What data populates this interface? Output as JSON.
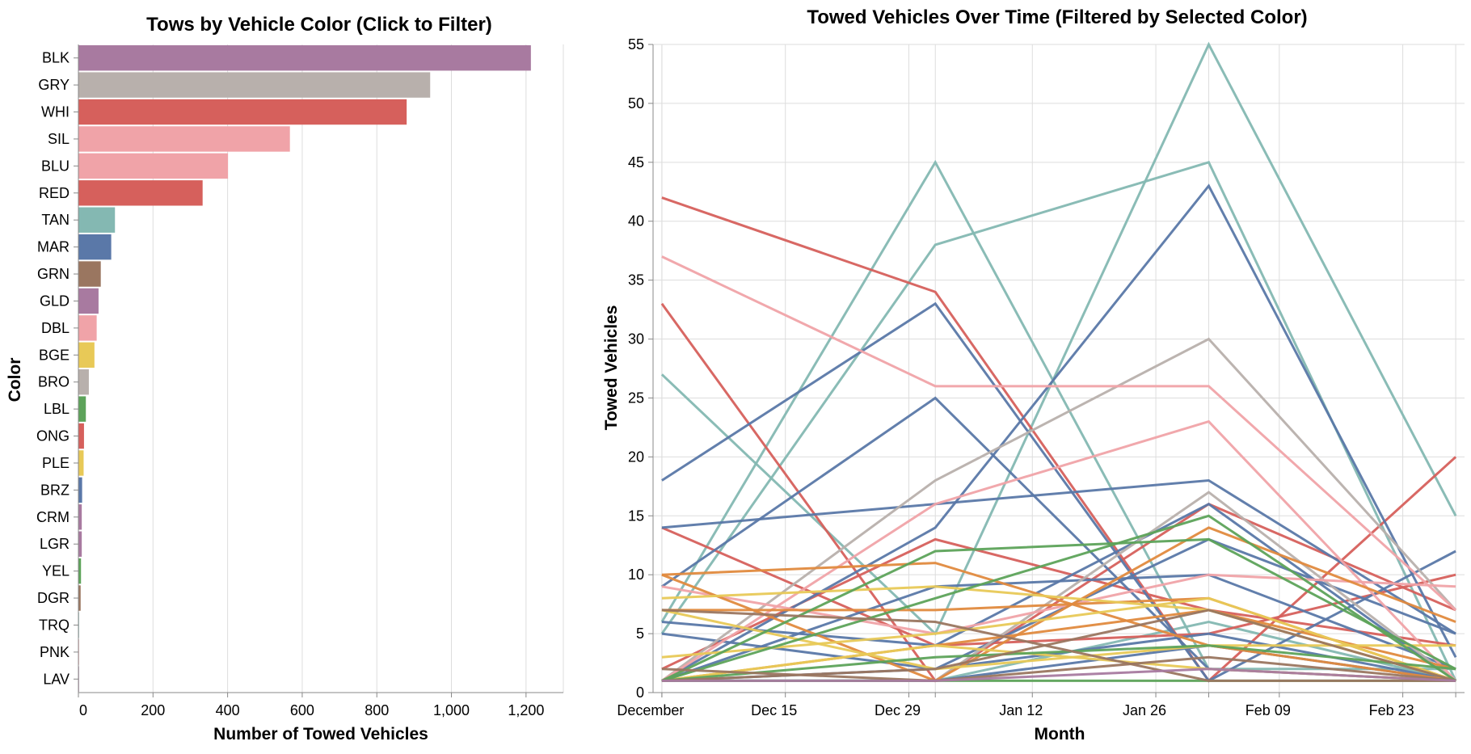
{
  "chart_data": [
    {
      "type": "bar",
      "orientation": "horizontal",
      "title": "Tows by Vehicle Color (Click to Filter)",
      "xlabel": "Number of Towed Vehicles",
      "ylabel": "Color",
      "xlim": [
        0,
        1300
      ],
      "x_ticks": [
        "0",
        "200",
        "400",
        "600",
        "800",
        "1,000",
        "1,200"
      ],
      "x_tick_values": [
        0,
        200,
        400,
        600,
        800,
        1000,
        1200
      ],
      "grid": true,
      "categories": [
        "BLK",
        "GRY",
        "WHI",
        "SIL",
        "BLU",
        "RED",
        "TAN",
        "MAR",
        "GRN",
        "GLD",
        "DBL",
        "BGE",
        "BRO",
        "LBL",
        "ONG",
        "PLE",
        "BRZ",
        "CRM",
        "LGR",
        "YEL",
        "DGR",
        "TRQ",
        "PNK",
        "LAV"
      ],
      "values": [
        1213,
        943,
        880,
        567,
        401,
        333,
        98,
        88,
        60,
        54,
        49,
        43,
        28,
        20,
        15,
        14,
        10,
        9,
        9,
        7,
        6,
        1,
        1,
        1
      ],
      "colors": [
        "#a87aa0",
        "#b8b0ac",
        "#d6605c",
        "#f0a3a8",
        "#f0a3a8",
        "#d6605c",
        "#84b8b2",
        "#5a78a8",
        "#9a7660",
        "#a87aa0",
        "#f0a3a8",
        "#e8c957",
        "#b8b0ac",
        "#5da35a",
        "#d6605c",
        "#e8c957",
        "#5a78a8",
        "#a87aa0",
        "#a87aa0",
        "#5da35a",
        "#9a7660",
        "#84b8b2",
        "#f0a3a8",
        "#a87aa0"
      ]
    },
    {
      "type": "line",
      "title": "Towed Vehicles Over Time (Filtered by Selected Color)",
      "xlabel": "Month",
      "ylabel": "Towed Vehicles",
      "ylim": [
        0,
        55
      ],
      "y_ticks": [
        0,
        5,
        10,
        15,
        20,
        25,
        30,
        35,
        40,
        45,
        50,
        55
      ],
      "x_ticks": [
        "December",
        "Dec 15",
        "Dec 29",
        "Jan 12",
        "Jan 26",
        "Feb 09",
        "Feb 23"
      ],
      "x_tick_dates": [
        "2024-12-01",
        "2024-12-15",
        "2024-12-29",
        "2025-01-12",
        "2025-01-26",
        "2025-02-09",
        "2025-02-23"
      ],
      "x_domain": [
        "2024-11-30",
        "2025-03-02"
      ],
      "x_dates": [
        "2024-12-01",
        "2025-01-01",
        "2025-02-01",
        "2025-03-01"
      ],
      "grid": true,
      "series": [
        {
          "color": "#84b8b2",
          "values": [
            27,
            5,
            55,
            15
          ]
        },
        {
          "color": "#84b8b2",
          "values": [
            6,
            45,
            2,
            2
          ]
        },
        {
          "color": "#84b8b2",
          "values": [
            5,
            38,
            45,
            1
          ]
        },
        {
          "color": "#84b8b2",
          "values": [
            1,
            1,
            6,
            1
          ]
        },
        {
          "color": "#d6605c",
          "values": [
            33,
            1,
            16,
            7
          ]
        },
        {
          "color": "#d6605c",
          "values": [
            42,
            34,
            1,
            20
          ]
        },
        {
          "color": "#d6605c",
          "values": [
            14,
            4,
            5,
            10
          ]
        },
        {
          "color": "#d6605c",
          "values": [
            2,
            13,
            7,
            4
          ]
        },
        {
          "color": "#5a78a8",
          "values": [
            18,
            33,
            1,
            12
          ]
        },
        {
          "color": "#5a78a8",
          "values": [
            14,
            16,
            18,
            5
          ]
        },
        {
          "color": "#5a78a8",
          "values": [
            9,
            25,
            2,
            1
          ]
        },
        {
          "color": "#5a78a8",
          "values": [
            6,
            4,
            16,
            1
          ]
        },
        {
          "color": "#5a78a8",
          "values": [
            1,
            14,
            43,
            3
          ]
        },
        {
          "color": "#5a78a8",
          "values": [
            1,
            9,
            10,
            2
          ]
        },
        {
          "color": "#5a78a8",
          "values": [
            5,
            2,
            13,
            5
          ]
        },
        {
          "color": "#5a78a8",
          "values": [
            1,
            2,
            5,
            1
          ]
        },
        {
          "color": "#5a78a8",
          "values": [
            1,
            1,
            4,
            1
          ]
        },
        {
          "color": "#b8b0ac",
          "values": [
            1,
            18,
            30,
            7
          ]
        },
        {
          "color": "#b8b0ac",
          "values": [
            1,
            1,
            17,
            1
          ]
        },
        {
          "color": "#f0a3a8",
          "values": [
            37,
            26,
            26,
            7
          ]
        },
        {
          "color": "#f0a3a8",
          "values": [
            9,
            5,
            10,
            9
          ]
        },
        {
          "color": "#f0a3a8",
          "values": [
            1,
            16,
            23,
            1
          ]
        },
        {
          "color": "#e08a3e",
          "values": [
            10,
            1,
            14,
            6
          ]
        },
        {
          "color": "#e08a3e",
          "values": [
            10,
            11,
            4,
            1
          ]
        },
        {
          "color": "#e08a3e",
          "values": [
            7,
            7,
            8,
            1
          ]
        },
        {
          "color": "#e08a3e",
          "values": [
            1,
            4,
            7,
            2
          ]
        },
        {
          "color": "#e8c957",
          "values": [
            8,
            9,
            7,
            1
          ]
        },
        {
          "color": "#e8c957",
          "values": [
            3,
            5,
            8,
            1
          ]
        },
        {
          "color": "#e8c957",
          "values": [
            7,
            2,
            4,
            4
          ]
        },
        {
          "color": "#e8c957",
          "values": [
            1,
            4,
            2,
            1
          ]
        },
        {
          "color": "#5da35a",
          "values": [
            1,
            12,
            13,
            2
          ]
        },
        {
          "color": "#5da35a",
          "values": [
            1,
            8,
            15,
            1
          ]
        },
        {
          "color": "#5da35a",
          "values": [
            1,
            3,
            4,
            2
          ]
        },
        {
          "color": "#5da35a",
          "values": [
            1,
            1,
            1,
            1
          ]
        },
        {
          "color": "#9a7660",
          "values": [
            7,
            6,
            1,
            1
          ]
        },
        {
          "color": "#9a7660",
          "values": [
            1,
            2,
            7,
            1
          ]
        },
        {
          "color": "#9a7660",
          "values": [
            2,
            1,
            3,
            1
          ]
        },
        {
          "color": "#a87aa0",
          "values": [
            1,
            1,
            2,
            1
          ]
        }
      ]
    }
  ]
}
